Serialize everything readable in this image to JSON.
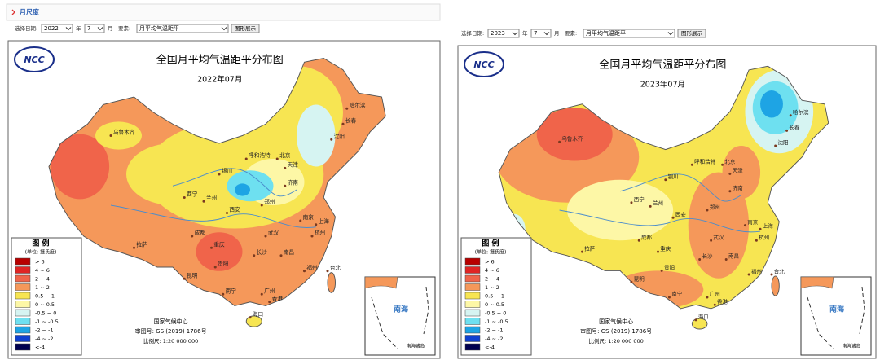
{
  "header": {
    "title": "月尺度"
  },
  "panels": [
    {
      "form": {
        "date_label": "选择日期:",
        "year": "2022",
        "year_unit": "年",
        "month": "7",
        "month_unit": "月",
        "element_label": "要素:",
        "element": "月平均气温距平",
        "button": "图形展示"
      },
      "map": {
        "logo": "NCC",
        "title": "全国月平均气温距平分布图",
        "subtitle": "2022年07月",
        "legend": {
          "title": "图 例",
          "unit": "(单位: 摄氏度)",
          "items": [
            {
              "label": "> 6",
              "color": "#b80000"
            },
            {
              "label": "4 ~ 6",
              "color": "#e02424"
            },
            {
              "label": "2 ~ 4",
              "color": "#f0644a"
            },
            {
              "label": "1 ~ 2",
              "color": "#f5985a"
            },
            {
              "label": "0.5 ~ 1",
              "color": "#f7e552"
            },
            {
              "label": "0 ~ 0.5",
              "color": "#fdf7a6"
            },
            {
              "label": "-0.5 ~ 0",
              "color": "#d6f4f2"
            },
            {
              "label": "-1 ~ -0.5",
              "color": "#6ee0f0"
            },
            {
              "label": "-2 ~ -1",
              "color": "#1ea4e4"
            },
            {
              "label": "-4 ~ -2",
              "color": "#1040d0"
            },
            {
              "label": "<-4",
              "color": "#000050"
            }
          ]
        },
        "credit": "国家气候中心",
        "approval": "审图号: GS (2019) 1786号",
        "scale": "比例尺: 1:20 000 000",
        "inset_title": "南海",
        "inset_label": "南海诸岛",
        "cities": [
          "乌鲁木齐",
          "拉萨",
          "西宁",
          "兰州",
          "银川",
          "呼和浩特",
          "北京",
          "天津",
          "哈尔滨",
          "长春",
          "沈阳",
          "济南",
          "郑州",
          "西安",
          "成都",
          "重庆",
          "武汉",
          "南京",
          "上海",
          "杭州",
          "长沙",
          "南昌",
          "福州",
          "贵阳",
          "昆明",
          "南宁",
          "广州",
          "香港",
          "海口",
          "台北"
        ]
      }
    },
    {
      "form": {
        "date_label": "选择日期:",
        "year": "2023",
        "year_unit": "年",
        "month": "7",
        "month_unit": "月",
        "element_label": "要素:",
        "element": "月平均气温距平",
        "button": "图形展示"
      },
      "map": {
        "logo": "NCC",
        "title": "全国月平均气温距平分布图",
        "subtitle": "2023年07月",
        "legend": {
          "title": "图 例",
          "unit": "(单位: 摄氏度)",
          "items": [
            {
              "label": "> 6",
              "color": "#b80000"
            },
            {
              "label": "4 ~ 6",
              "color": "#e02424"
            },
            {
              "label": "2 ~ 4",
              "color": "#f0644a"
            },
            {
              "label": "1 ~ 2",
              "color": "#f5985a"
            },
            {
              "label": "0.5 ~ 1",
              "color": "#f7e552"
            },
            {
              "label": "0 ~ 0.5",
              "color": "#fdf7a6"
            },
            {
              "label": "-0.5 ~ 0",
              "color": "#d6f4f2"
            },
            {
              "label": "-1 ~ -0.5",
              "color": "#6ee0f0"
            },
            {
              "label": "-2 ~ -1",
              "color": "#1ea4e4"
            },
            {
              "label": "-4 ~ -2",
              "color": "#1040d0"
            },
            {
              "label": "<-4",
              "color": "#000050"
            }
          ]
        },
        "credit": "国家气候中心",
        "approval": "审图号: GS (2019) 1786号",
        "scale": "比例尺: 1:20 000 000",
        "inset_title": "南海",
        "inset_label": "南海诸岛",
        "cities": [
          "乌鲁木齐",
          "拉萨",
          "西宁",
          "兰州",
          "银川",
          "呼和浩特",
          "北京",
          "天津",
          "哈尔滨",
          "长春",
          "沈阳",
          "济南",
          "郑州",
          "西安",
          "成都",
          "重庆",
          "武汉",
          "南京",
          "上海",
          "杭州",
          "长沙",
          "南昌",
          "福州",
          "贵阳",
          "昆明",
          "南宁",
          "广州",
          "香港",
          "海口",
          "台北"
        ]
      }
    }
  ]
}
